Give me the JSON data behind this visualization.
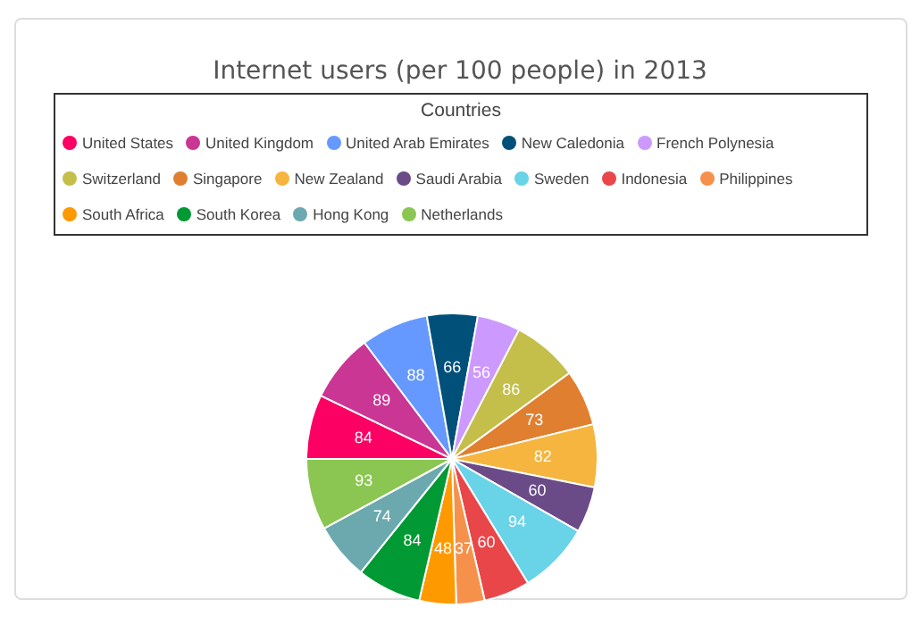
{
  "chart_data": {
    "type": "pie",
    "title": "Internet users (per 100 people) in 2013",
    "legend_title": "Countries",
    "legend": "top",
    "categories": [
      "United States",
      "United Kingdom",
      "United Arab Emirates",
      "New Caledonia",
      "French Polynesia",
      "Switzerland",
      "Singapore",
      "New Zealand",
      "Saudi Arabia",
      "Sweden",
      "Indonesia",
      "Philippines",
      "South Africa",
      "South Korea",
      "Hong Kong",
      "Netherlands"
    ],
    "values": [
      84,
      89,
      88,
      66,
      56,
      86,
      73,
      82,
      60,
      94,
      60,
      37,
      48,
      84,
      74,
      93
    ],
    "colors": [
      "#fc0064",
      "#c93694",
      "#6699ff",
      "#00507a",
      "#cc99ff",
      "#c4bf4a",
      "#e07f30",
      "#f5b53e",
      "#6a4a87",
      "#69d3e8",
      "#e94649",
      "#f6914c",
      "#ff9900",
      "#009933",
      "#6ca9ae",
      "#8bc652"
    ],
    "data_labels": true
  }
}
